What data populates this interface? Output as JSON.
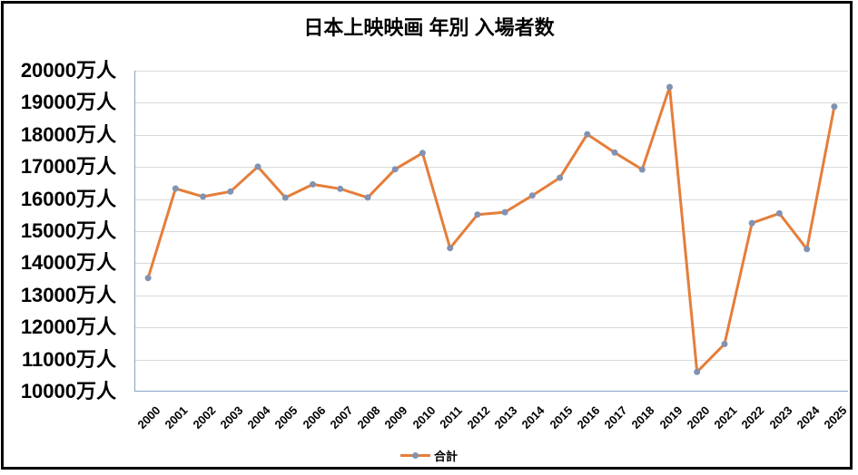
{
  "window": {
    "border_color": "#000000",
    "background": "#ffffff"
  },
  "chart_data": {
    "type": "line",
    "title": "日本上映映画 年別 入場者数",
    "x_ticks": [
      "2000",
      "2001",
      "2002",
      "2003",
      "2004",
      "2005",
      "2006",
      "2007",
      "2008",
      "2009",
      "2010",
      "2011",
      "2012",
      "2013",
      "2014",
      "2015",
      "2016",
      "2017",
      "2018",
      "2019",
      "2020",
      "2021",
      "2022",
      "2023",
      "2024",
      "2025"
    ],
    "series": [
      {
        "name": "合計",
        "values": [
          13539,
          16328,
          16077,
          16235,
          17009,
          16045,
          16459,
          16319,
          16049,
          16930,
          17436,
          14473,
          15516,
          15589,
          16111,
          16663,
          18019,
          17448,
          16921,
          19491,
          10614,
          11482,
          15252,
          15553,
          14442,
          18880
        ]
      }
    ],
    "ylim": [
      10000,
      20000
    ],
    "y_tick_step": 1000,
    "y_tick_suffix": "万人",
    "y_tick_labels": [
      "20000万人",
      "19000万人",
      "18000万人",
      "17000万人",
      "16000万人",
      "15000万人",
      "14000万人",
      "13000万人",
      "12000万人",
      "11000万人",
      "10000万人"
    ],
    "grid": true,
    "legend_position": "bottom",
    "colors": {
      "line": "#E57E3B",
      "marker": "#8193B2",
      "gridline": "#D9D9D9",
      "axis": "#86A3C3",
      "text": "#000000"
    }
  }
}
